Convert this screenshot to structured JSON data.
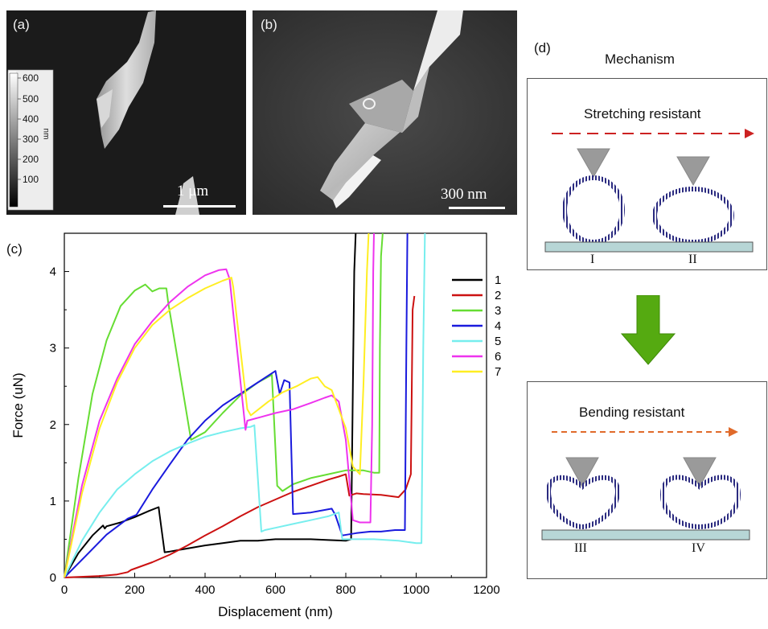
{
  "panel_a": {
    "label": "(a)",
    "scale_text": "1 μm",
    "colorbar_ticks": [
      "600",
      "500",
      "400",
      "300",
      "200",
      "100"
    ],
    "colorbar_unit": "nm"
  },
  "panel_b": {
    "label": "(b)",
    "scale_text": "300 nm"
  },
  "panel_c": {
    "label": "(c)"
  },
  "panel_d": {
    "label": "(d)",
    "title": "Mechanism",
    "top_box": {
      "title": "Stretching resistant",
      "labels": [
        "I",
        "II"
      ],
      "arrow_color": "#cc2222"
    },
    "bottom_box": {
      "title": "Bending resistant",
      "labels": [
        "III",
        "IV"
      ],
      "arrow_color": "#e06a2a"
    },
    "transition_arrow_color": "#55aa11"
  },
  "chart_data": {
    "type": "line",
    "xlabel": "Displacement (nm)",
    "ylabel": "Force (uN)",
    "xlim": [
      0,
      1200
    ],
    "ylim": [
      0,
      4.5
    ],
    "xticks": [
      "0",
      "200",
      "400",
      "600",
      "800",
      "1000",
      "1200"
    ],
    "yticks": [
      "0",
      "1",
      "2",
      "3",
      "4"
    ],
    "legend_position": "right",
    "series": [
      {
        "name": "1",
        "color": "#000000",
        "x": [
          0,
          40,
          80,
          110,
          115,
          120,
          160,
          200,
          240,
          268,
          270,
          285,
          300,
          350,
          400,
          450,
          500,
          550,
          600,
          650,
          700,
          750,
          800,
          815,
          820,
          824,
          828
        ],
        "y": [
          0,
          0.32,
          0.55,
          0.68,
          0.64,
          0.67,
          0.72,
          0.79,
          0.87,
          0.92,
          0.85,
          0.33,
          0.34,
          0.38,
          0.42,
          0.45,
          0.48,
          0.48,
          0.5,
          0.5,
          0.5,
          0.49,
          0.48,
          0.5,
          2.5,
          4.0,
          4.5
        ]
      },
      {
        "name": "2",
        "color": "#cc1111",
        "x": [
          0,
          100,
          150,
          180,
          190,
          250,
          300,
          350,
          400,
          450,
          500,
          550,
          600,
          650,
          700,
          750,
          780,
          800,
          810,
          830,
          850,
          900,
          950,
          970,
          985,
          990,
          995
        ],
        "y": [
          0,
          0.02,
          0.04,
          0.07,
          0.1,
          0.2,
          0.3,
          0.42,
          0.55,
          0.67,
          0.8,
          0.92,
          1.02,
          1.12,
          1.2,
          1.28,
          1.32,
          1.35,
          1.07,
          1.1,
          1.09,
          1.08,
          1.05,
          1.15,
          1.35,
          3.5,
          3.68
        ]
      },
      {
        "name": "3",
        "color": "#66dd33",
        "x": [
          0,
          40,
          80,
          120,
          160,
          200,
          230,
          250,
          270,
          290,
          295,
          360,
          400,
          450,
          500,
          550,
          590,
          605,
          620,
          650,
          700,
          750,
          800,
          850,
          880,
          895,
          897,
          900,
          905
        ],
        "y": [
          0,
          1.3,
          2.4,
          3.1,
          3.55,
          3.75,
          3.83,
          3.74,
          3.78,
          3.78,
          3.6,
          1.8,
          1.9,
          2.15,
          2.38,
          2.55,
          2.65,
          1.2,
          1.13,
          1.22,
          1.3,
          1.35,
          1.4,
          1.4,
          1.37,
          1.37,
          3.0,
          4.2,
          4.5
        ]
      },
      {
        "name": "4",
        "color": "#1a1add",
        "x": [
          0,
          60,
          120,
          180,
          205,
          250,
          300,
          350,
          400,
          450,
          500,
          550,
          600,
          612,
          625,
          640,
          650,
          700,
          760,
          770,
          790,
          830,
          870,
          900,
          940,
          968,
          972,
          975
        ],
        "y": [
          0,
          0.28,
          0.56,
          0.77,
          0.82,
          1.15,
          1.48,
          1.8,
          2.05,
          2.25,
          2.4,
          2.55,
          2.7,
          2.4,
          2.58,
          2.55,
          0.83,
          0.85,
          0.9,
          0.82,
          0.55,
          0.58,
          0.6,
          0.6,
          0.62,
          0.62,
          3.0,
          4.5
        ]
      },
      {
        "name": "5",
        "color": "#77eeee",
        "x": [
          0,
          50,
          100,
          150,
          200,
          250,
          300,
          350,
          400,
          450,
          500,
          530,
          540,
          560,
          570,
          600,
          650,
          700,
          750,
          780,
          790,
          820,
          880,
          950,
          1000,
          1015,
          1020,
          1025
        ],
        "y": [
          0,
          0.48,
          0.85,
          1.15,
          1.35,
          1.52,
          1.65,
          1.75,
          1.84,
          1.9,
          1.95,
          1.97,
          1.99,
          0.6,
          0.62,
          0.65,
          0.7,
          0.75,
          0.8,
          0.85,
          0.5,
          0.5,
          0.5,
          0.48,
          0.45,
          0.45,
          3.0,
          4.5
        ]
      },
      {
        "name": "6",
        "color": "#ee33ee",
        "x": [
          0,
          50,
          100,
          150,
          200,
          250,
          300,
          350,
          400,
          440,
          460,
          470,
          515,
          520,
          560,
          600,
          650,
          700,
          740,
          760,
          780,
          800,
          820,
          840,
          870,
          875,
          878,
          880
        ],
        "y": [
          0,
          1.2,
          2.05,
          2.6,
          3.05,
          3.35,
          3.6,
          3.8,
          3.95,
          4.02,
          4.03,
          3.9,
          1.93,
          2.05,
          2.1,
          2.15,
          2.2,
          2.28,
          2.35,
          2.38,
          2.3,
          1.8,
          0.75,
          0.72,
          0.72,
          2.0,
          4.0,
          4.5
        ]
      },
      {
        "name": "7",
        "color": "#ffee22",
        "x": [
          0,
          50,
          100,
          150,
          200,
          250,
          300,
          350,
          400,
          450,
          475,
          480,
          520,
          530,
          580,
          620,
          660,
          700,
          720,
          740,
          760,
          780,
          800,
          820,
          840,
          850,
          860,
          865
        ],
        "y": [
          0,
          1.1,
          1.95,
          2.55,
          3.0,
          3.3,
          3.5,
          3.65,
          3.78,
          3.88,
          3.92,
          3.8,
          2.2,
          2.12,
          2.3,
          2.42,
          2.5,
          2.6,
          2.62,
          2.5,
          2.45,
          2.2,
          1.95,
          1.45,
          1.35,
          2.5,
          4.0,
          4.5
        ]
      }
    ]
  }
}
